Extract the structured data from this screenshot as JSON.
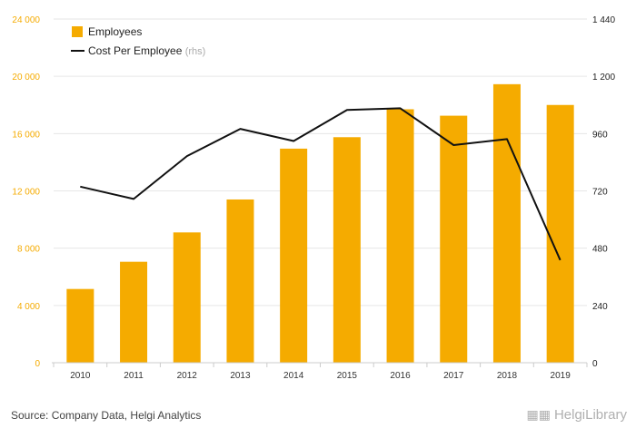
{
  "chart_data": {
    "type": "bar+line",
    "categories": [
      "2010",
      "2011",
      "2012",
      "2013",
      "2014",
      "2015",
      "2016",
      "2017",
      "2018",
      "2019"
    ],
    "series": [
      {
        "name": "Employees",
        "kind": "bar",
        "axis": "left",
        "values": [
          5150,
          7050,
          9100,
          11400,
          14950,
          15750,
          17700,
          17250,
          19450,
          18000
        ]
      },
      {
        "name": "Cost Per Employee",
        "kind": "line",
        "axis": "right",
        "values": [
          738,
          686,
          866,
          980,
          929,
          1059,
          1066,
          912,
          937,
          430
        ]
      }
    ],
    "left_axis": {
      "min": 0,
      "max": 24000,
      "ticks": [
        0,
        4000,
        8000,
        12000,
        16000,
        20000,
        24000
      ],
      "tick_labels": [
        "0",
        "4 000",
        "8 000",
        "12 000",
        "16 000",
        "20 000",
        "24 000"
      ]
    },
    "right_axis": {
      "min": 0,
      "max": 1440,
      "ticks": [
        0,
        240,
        480,
        720,
        960,
        1200,
        1440
      ],
      "tick_labels": [
        "0",
        "240",
        "480",
        "720",
        "960",
        "1 200",
        "1 440"
      ]
    },
    "legend": {
      "placement": "top-left",
      "items": [
        "Employees",
        "Cost Per Employee"
      ],
      "rhs_tag": "(rhs)"
    },
    "colors": {
      "bar": "#f5ab00",
      "line": "#111111",
      "left_tick": "#f5ab00",
      "right_tick": "#222222",
      "grid": "#e6e6e6"
    }
  },
  "footer": {
    "source": "Source: Company Data, Helgi Analytics",
    "brand": "HelgiLibrary",
    "brand_icon": "library-buildings-icon"
  }
}
